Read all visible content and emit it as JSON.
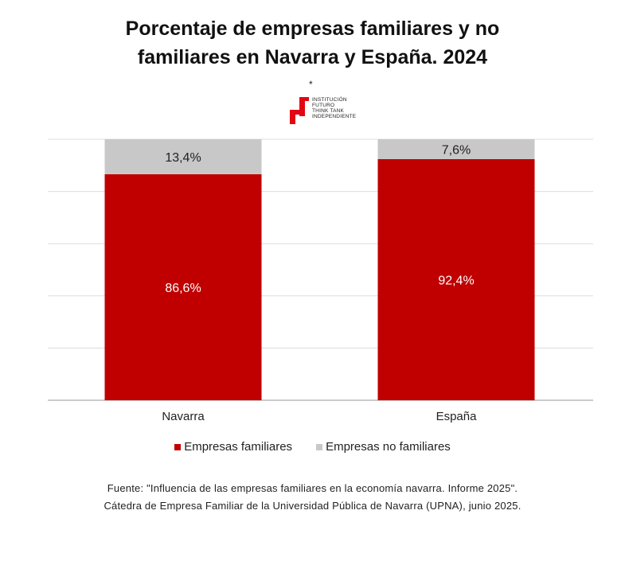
{
  "title": {
    "line1": "Porcentaje de empresas familiares y no",
    "line2": "familiares en Navarra y España. 2024"
  },
  "logo": {
    "star": "*",
    "lines": [
      "INSTITUCIÓN",
      "FUTURO",
      "THINK TANK",
      "INDEPENDIENTE"
    ],
    "color": "#e30613"
  },
  "chart_data": {
    "type": "bar",
    "stacked": true,
    "normalized_percent": true,
    "categories": [
      "Navarra",
      "España"
    ],
    "series": [
      {
        "name": "Empresas familiares",
        "values": [
          86.6,
          92.4
        ],
        "labels": [
          "86,6%",
          "92,4%"
        ],
        "color": "#c00000",
        "label_color": "#ffffff"
      },
      {
        "name": "Empresas no familiares",
        "values": [
          13.4,
          7.6
        ],
        "labels": [
          "13,4%",
          "7,6%"
        ],
        "color": "#c8c8c8",
        "label_color": "#222222"
      }
    ],
    "ylim": [
      0,
      100
    ],
    "grid": true,
    "legend_position": "bottom"
  },
  "source": {
    "line1": "Fuente: \"Influencia de las empresas familiares en la economía navarra. Informe 2025\".",
    "line2": "Cátedra de Empresa Familiar de la Universidad Pública de Navarra (UPNA), junio 2025."
  }
}
